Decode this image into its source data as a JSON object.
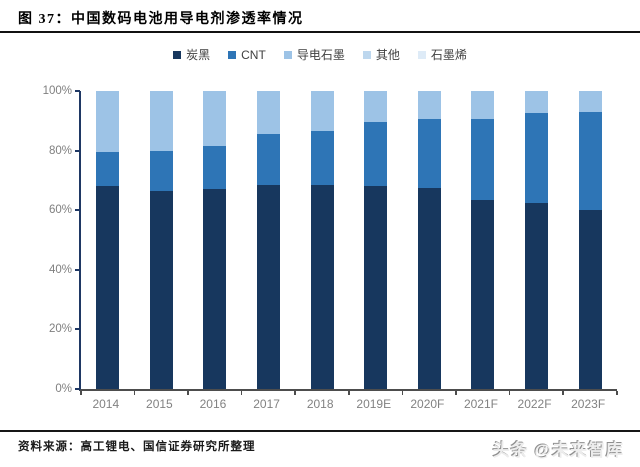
{
  "header": {
    "title": "图 37：中国数码电池用导电剂渗透率情况"
  },
  "footer": {
    "source": "资料来源：高工锂电、国信证券研究所整理",
    "watermark": "头条 @未来智库"
  },
  "chart_data": {
    "type": "bar",
    "stacked": true,
    "title": "中国数码电池用导电剂渗透率情况",
    "categories": [
      "2014",
      "2015",
      "2016",
      "2017",
      "2018",
      "2019E",
      "2020F",
      "2021F",
      "2022F",
      "2023F"
    ],
    "series": [
      {
        "name": "炭黑",
        "color": "#17375E",
        "values": [
          68,
          66.5,
          67,
          68.5,
          68.5,
          68,
          67.5,
          63.5,
          62.5,
          60
        ]
      },
      {
        "name": "CNT",
        "color": "#2E75B6",
        "values": [
          11.5,
          13.5,
          14.5,
          17,
          18,
          21.5,
          23,
          27,
          30,
          33
        ]
      },
      {
        "name": "导电石墨",
        "color": "#9DC3E6",
        "values": [
          20.5,
          20,
          18.5,
          14.5,
          13.5,
          10.5,
          9.5,
          9.5,
          7.5,
          7
        ]
      },
      {
        "name": "其他",
        "color": "#BDD7EE",
        "values": [
          0,
          0,
          0,
          0,
          0,
          0,
          0,
          0,
          0,
          0
        ]
      },
      {
        "name": "石墨烯",
        "color": "#DEEBF7",
        "values": [
          0,
          0,
          0,
          0,
          0,
          0,
          0,
          0,
          0,
          0
        ]
      }
    ],
    "xlabel": "",
    "ylabel": "",
    "ylim": [
      0,
      100
    ],
    "yticks": [
      0,
      20,
      40,
      60,
      80,
      100
    ],
    "ytick_suffix": "%",
    "grid": false,
    "legend_position": "top",
    "axis_colors": {
      "y_axis": "#1F3864",
      "x_axis": "#4d4d4d",
      "tick_label": "#7f7f7f"
    }
  }
}
